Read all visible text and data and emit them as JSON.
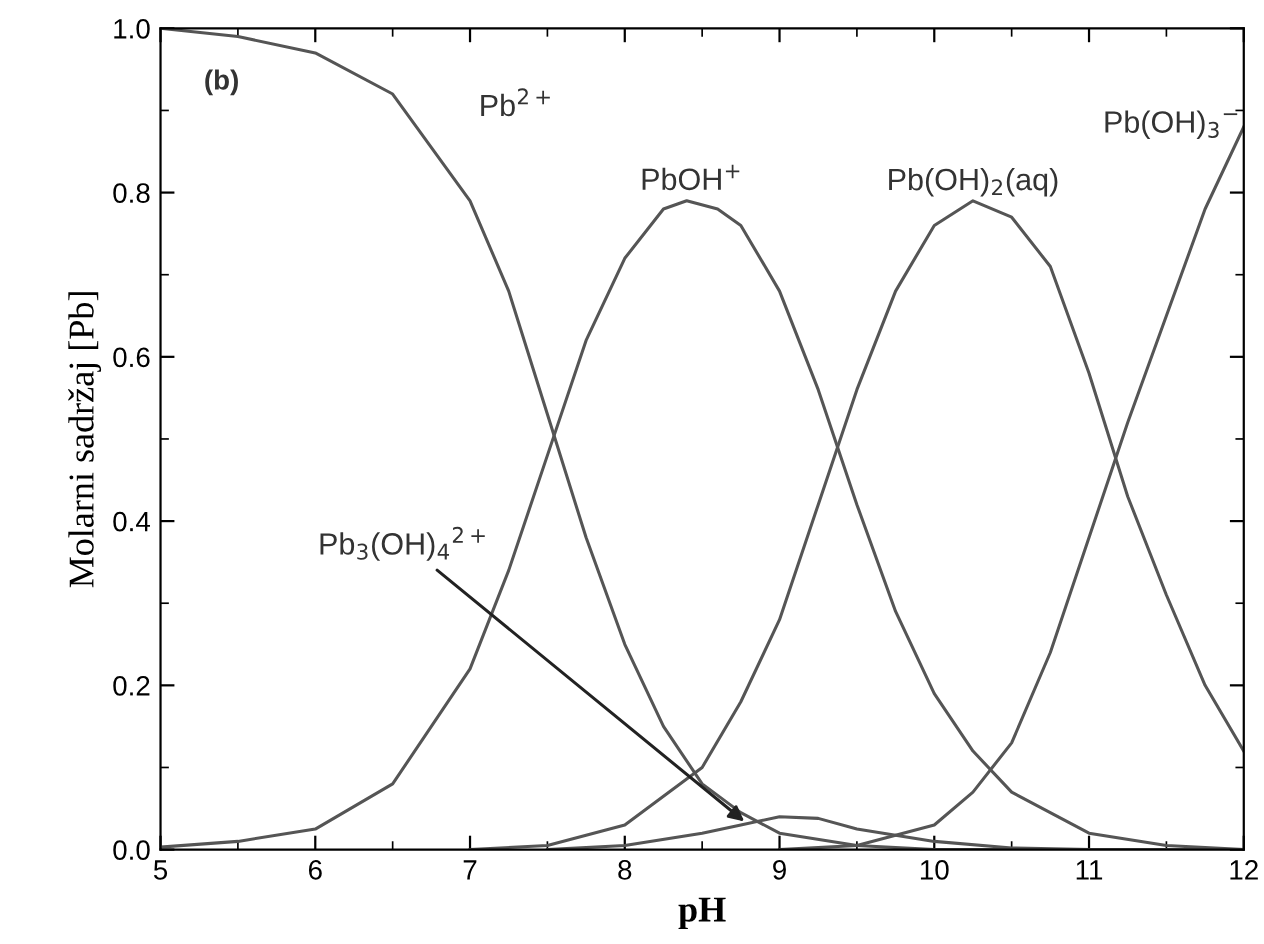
{
  "chart_data": {
    "type": "line",
    "xlabel": "pH",
    "ylabel": "Molarni sadržaj [Pb]",
    "xlim": [
      5,
      12
    ],
    "ylim": [
      0,
      1.0
    ],
    "xticks": [
      5,
      6,
      7,
      8,
      9,
      10,
      11,
      12
    ],
    "yticks": [
      {
        "value": 0,
        "label": "0.0"
      },
      0.2,
      0.4,
      0.6,
      0.8,
      {
        "value": 1.0,
        "label": "1.0"
      }
    ],
    "grid": false,
    "marker": "none",
    "line_style": "solid",
    "series": [
      {
        "color": "#555555",
        "x": [
          5,
          5.5,
          6,
          6.5,
          7,
          7.25,
          7.5,
          7.75,
          8,
          8.25,
          8.5,
          8.75,
          9,
          9.5,
          10,
          12
        ],
        "values": [
          1.0,
          0.99,
          0.97,
          0.92,
          0.79,
          0.68,
          0.53,
          0.38,
          0.25,
          0.15,
          0.08,
          0.045,
          0.02,
          0.005,
          0,
          0
        ]
      },
      {
        "color": "#555555",
        "x": [
          5,
          5.5,
          6,
          6.5,
          7,
          7.25,
          7.5,
          7.75,
          8,
          8.25,
          8.4,
          8.6,
          8.75,
          9,
          9.25,
          9.5,
          9.75,
          10,
          10.25,
          10.5,
          11,
          11.5,
          12
        ],
        "values": [
          0.003,
          0.01,
          0.025,
          0.08,
          0.22,
          0.34,
          0.48,
          0.62,
          0.72,
          0.78,
          0.79,
          0.78,
          0.76,
          0.68,
          0.56,
          0.42,
          0.29,
          0.19,
          0.12,
          0.07,
          0.02,
          0.005,
          0
        ]
      },
      {
        "color": "#555555",
        "x": [
          7,
          7.5,
          8,
          8.5,
          8.75,
          9,
          9.25,
          9.5,
          9.75,
          10,
          10.25,
          10.5,
          10.75,
          11,
          11.25,
          11.5,
          11.75,
          12
        ],
        "values": [
          0,
          0.005,
          0.03,
          0.1,
          0.18,
          0.28,
          0.42,
          0.56,
          0.68,
          0.76,
          0.79,
          0.77,
          0.71,
          0.58,
          0.43,
          0.31,
          0.2,
          0.12
        ]
      },
      {
        "color": "#555555",
        "x": [
          9,
          9.5,
          10,
          10.25,
          10.5,
          10.75,
          11,
          11.25,
          11.5,
          11.75,
          12
        ],
        "values": [
          0,
          0.005,
          0.03,
          0.07,
          0.13,
          0.24,
          0.38,
          0.52,
          0.65,
          0.78,
          0.88
        ]
      },
      {
        "color": "#555555",
        "x": [
          7.5,
          8,
          8.5,
          8.75,
          9,
          9.25,
          9.5,
          10,
          10.5,
          11
        ],
        "values": [
          0,
          0.005,
          0.02,
          0.03,
          0.04,
          0.038,
          0.025,
          0.01,
          0.002,
          0
        ]
      }
    ],
    "annotations": [
      "(b)",
      "Pb$^{2+}$",
      "PbOH$^{+}$",
      "Pb(OH)$_{2}$(aq)",
      "Pb(OH)$_{3}$$^{−}$",
      {
        "text": "Pb$_{3}$(OH)$_{4}$$^{2+}$",
        "x": 8.8,
        "y": 0.03
      }
    ]
  }
}
